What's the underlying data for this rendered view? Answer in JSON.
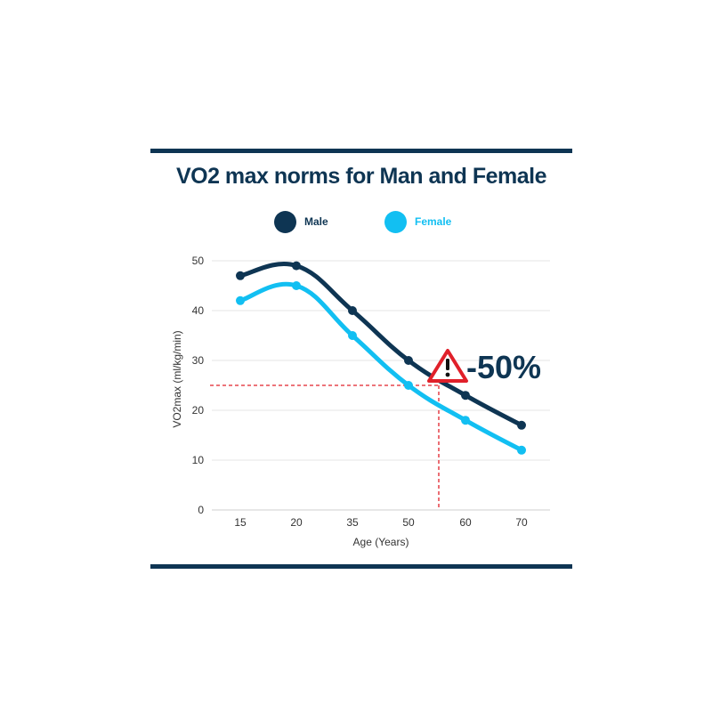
{
  "chart_data": {
    "type": "line",
    "title": "VO2 max norms for Man and Female",
    "xlabel": "Age (Years)",
    "ylabel": "VO2max (ml/kg/min)",
    "categories": [
      "15",
      "20",
      "35",
      "50",
      "60",
      "70"
    ],
    "ylim": [
      0,
      50
    ],
    "yticks": [
      0,
      10,
      20,
      30,
      40,
      50
    ],
    "grid": true,
    "legend_position": "top",
    "series": [
      {
        "name": "Male",
        "color": "#0e3553",
        "values": [
          47,
          49,
          40,
          30,
          23,
          17
        ]
      },
      {
        "name": "Female",
        "color": "#12bff2",
        "values": [
          42,
          45,
          35,
          25,
          18,
          12
        ]
      }
    ],
    "annotation": {
      "text": "-50%",
      "icon": "warning-triangle-icon",
      "reference_y": 25,
      "reference_line_color": "#e0202a"
    }
  }
}
